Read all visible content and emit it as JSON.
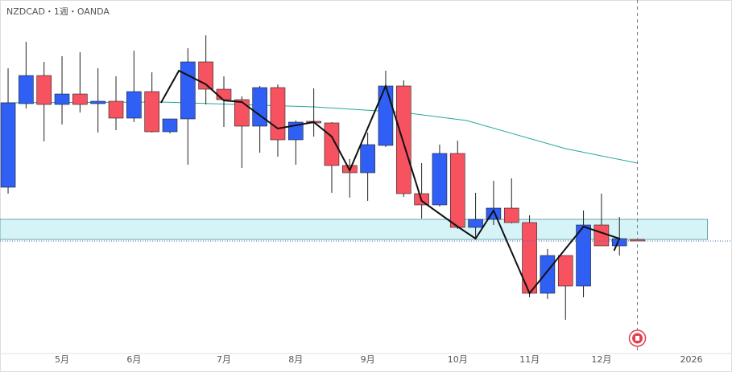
{
  "chart_data": {
    "type": "candlestick",
    "title": "NZDCAD・1週・OANDA",
    "up_color": "#2f5ff5",
    "down_color": "#f7525f",
    "open": [
      0.7967,
      0.8071,
      0.8106,
      0.807,
      0.8083,
      0.8071,
      0.8074,
      0.8053,
      0.8086,
      0.8036,
      0.8052,
      0.8123,
      0.8089,
      0.8076,
      0.8043,
      0.8091,
      0.8026,
      0.8049,
      0.8047,
      0.7994,
      0.7985,
      0.8019,
      0.8093,
      0.7959,
      0.7945,
      0.8009,
      0.7917,
      0.7927,
      0.7941,
      0.7923,
      0.7835,
      0.7882,
      0.7844,
      0.792,
      0.7894,
      0.7902
    ],
    "high": [
      0.8115,
      0.8148,
      0.8123,
      0.813,
      0.8135,
      0.8115,
      0.8105,
      0.8137,
      0.811,
      0.8052,
      0.814,
      0.8156,
      0.8105,
      0.808,
      0.8093,
      0.8095,
      0.805,
      0.809,
      0.8048,
      0.8002,
      0.8035,
      0.8112,
      0.81,
      0.7997,
      0.802,
      0.8025,
      0.796,
      0.7975,
      0.7978,
      0.7932,
      0.789,
      0.7882,
      0.7938,
      0.7959,
      0.793,
      0.7902
    ],
    "low": [
      0.7959,
      0.8065,
      0.8024,
      0.8045,
      0.806,
      0.8035,
      0.8038,
      0.8048,
      0.8035,
      0.8034,
      0.7995,
      0.807,
      0.8042,
      0.7991,
      0.801,
      0.8005,
      0.7995,
      0.803,
      0.796,
      0.7954,
      0.795,
      0.8017,
      0.7955,
      0.7928,
      0.7943,
      0.7915,
      0.7903,
      0.792,
      0.7922,
      0.783,
      0.7828,
      0.7802,
      0.783,
      0.7894,
      0.7882,
      0.79
    ],
    "close": [
      0.8072,
      0.8106,
      0.807,
      0.8083,
      0.807,
      0.8074,
      0.8053,
      0.8086,
      0.8036,
      0.8052,
      0.8123,
      0.8089,
      0.8076,
      0.8043,
      0.8091,
      0.8026,
      0.8048,
      0.8047,
      0.7994,
      0.7985,
      0.802,
      0.8093,
      0.7959,
      0.7945,
      0.8009,
      0.7917,
      0.7927,
      0.7941,
      0.7923,
      0.7835,
      0.7882,
      0.7844,
      0.792,
      0.7894,
      0.7903,
      0.79
    ],
    "ma": {
      "color": "#26a69a",
      "x": [
        -0.4,
        8.5,
        17,
        22,
        25.5,
        31,
        35
      ],
      "values": [
        0.8072,
        0.8073,
        0.8067,
        0.806,
        0.805,
        0.8015,
        0.7997
      ]
    },
    "zigzag": {
      "color": "#111111",
      "x": [
        8.5,
        9.5,
        11,
        12,
        13,
        15,
        17,
        18,
        19,
        21,
        23,
        25,
        26,
        27,
        29,
        32,
        34,
        33.7
      ],
      "values": [
        0.8072,
        0.8112,
        0.8095,
        0.8075,
        0.8073,
        0.804,
        0.8048,
        0.803,
        0.7988,
        0.8093,
        0.795,
        0.7918,
        0.7903,
        0.7938,
        0.7835,
        0.7918,
        0.7903,
        0.7888
      ]
    },
    "zone": {
      "color": "#d6f4f7",
      "values": [
        0.7902,
        0.7927
      ],
      "x": [
        -0.45,
        38.9
      ]
    },
    "last_price": 0.79,
    "now_x": 35,
    "xlim": [
      -0.45,
      40.26
    ],
    "ylim": [
      0.776,
      0.82
    ],
    "xticks": [
      {
        "value": 3,
        "label": "5月"
      },
      {
        "value": 7,
        "label": "6月"
      },
      {
        "value": 12,
        "label": "7月"
      },
      {
        "value": 16,
        "label": "8月"
      },
      {
        "value": 20,
        "label": "9月"
      },
      {
        "value": 25,
        "label": "10月"
      },
      {
        "value": 29,
        "label": "11月"
      },
      {
        "value": 33,
        "label": "12月"
      },
      {
        "value": 38,
        "label": "2026"
      }
    ]
  }
}
